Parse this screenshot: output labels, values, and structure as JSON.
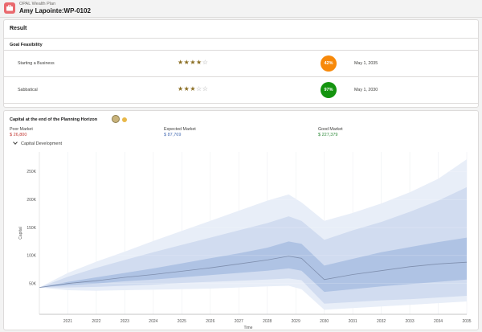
{
  "app": {
    "name": "OPAL Wealth Plan",
    "title": "Amy Lapointe:WP-0102",
    "icon": "briefcase-icon",
    "accent": "#e9696e"
  },
  "result": {
    "heading": "Result",
    "goal_heading": "Goal Feasibility",
    "goals": [
      {
        "name": "Starting a Business",
        "stars": 4,
        "max_stars": 5,
        "probability": "42%",
        "badge_color": "#f7890a",
        "date": "May 1, 2035"
      },
      {
        "name": "Sabbatical",
        "stars": 3,
        "max_stars": 5,
        "probability": "97%",
        "badge_color": "#14940f",
        "date": "May 1, 2030"
      }
    ]
  },
  "capital": {
    "heading": "Capital at the end of the Planning Horizon",
    "markets": [
      {
        "label": "Poor Market",
        "value": "$ 26,800",
        "color": "#c23934"
      },
      {
        "label": "Expected Market",
        "value": "$ 87,769",
        "color": "#4a6fb5"
      },
      {
        "label": "Good Market",
        "value": "$ 227,379",
        "color": "#2e8b3a"
      }
    ],
    "development_label": "Capital Development"
  },
  "chart_data": {
    "type": "area",
    "xlabel": "Time",
    "ylabel": "Capital",
    "x_ticks": [
      "2021",
      "2022",
      "2023",
      "2024",
      "2025",
      "2026",
      "2027",
      "2028",
      "2029",
      "2030",
      "2031",
      "2032",
      "2033",
      "2034",
      "2035"
    ],
    "y_ticks": [
      "50K",
      "100K",
      "150K",
      "200K",
      "250K"
    ],
    "y_tick_values": [
      50000,
      100000,
      150000,
      200000,
      250000
    ],
    "ylim": [
      -5000,
      285000
    ],
    "x": [
      2020.0,
      2021,
      2022,
      2023,
      2024,
      2025,
      2026,
      2027,
      2028,
      2028.75,
      2029.2,
      2030,
      2031,
      2032,
      2033,
      2034,
      2035
    ],
    "bands": [
      {
        "name": "outer",
        "color": "#e8eef8",
        "upper": [
          43000,
          69000,
          89000,
          107000,
          126000,
          144000,
          162000,
          180000,
          198000,
          209000,
          195000,
          162000,
          176000,
          193000,
          213000,
          237000,
          272000
        ],
        "lower": [
          43000,
          38000,
          37000,
          38000,
          39000,
          40000,
          41000,
          43000,
          45000,
          46000,
          40000,
          3000,
          6000,
          9000,
          12000,
          15000,
          18000
        ]
      },
      {
        "name": "middle",
        "color": "#d1dcf0",
        "upper": [
          43000,
          62000,
          78000,
          92000,
          106000,
          119000,
          132000,
          145000,
          158000,
          170000,
          162000,
          128000,
          145000,
          160000,
          178000,
          198000,
          222000
        ],
        "lower": [
          43000,
          43000,
          44000,
          46000,
          48000,
          51000,
          53000,
          55000,
          57000,
          59000,
          56000,
          14000,
          17000,
          20000,
          22000,
          25000,
          28000
        ]
      },
      {
        "name": "inner",
        "color": "#afc3e4",
        "upper": [
          43000,
          53000,
          61000,
          69000,
          77000,
          86000,
          95000,
          104000,
          114000,
          125000,
          121000,
          82000,
          94000,
          106000,
          115000,
          124000,
          132000
        ],
        "lower": [
          43000,
          47000,
          50000,
          54000,
          57000,
          61000,
          65000,
          69000,
          73000,
          77000,
          73000,
          35000,
          40000,
          45000,
          49000,
          53000,
          57000
        ]
      }
    ],
    "median": [
      43000,
      50000,
      55000,
      61000,
      66000,
      72000,
      78000,
      85000,
      92000,
      99000,
      95000,
      57000,
      66000,
      73000,
      80000,
      85000,
      88000
    ],
    "median_color": "#7f8fae",
    "grid": true
  }
}
